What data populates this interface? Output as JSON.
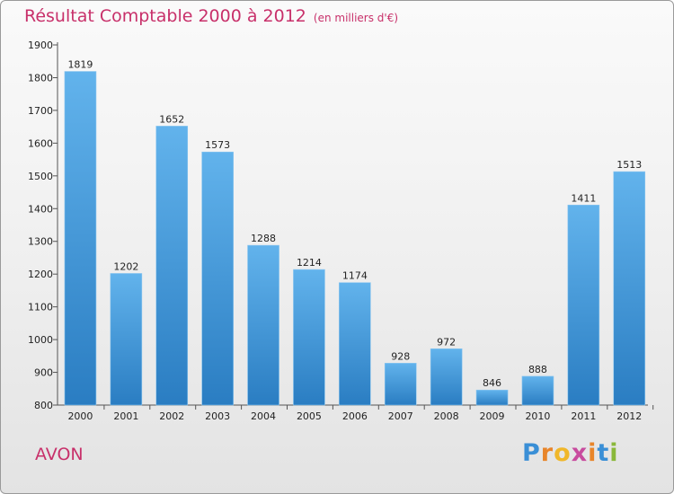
{
  "chart_data": {
    "type": "bar",
    "title": "Résultat Comptable 2000 à 2012",
    "subtitle": "(en milliers d'€)",
    "categories": [
      "2000",
      "2001",
      "2002",
      "2003",
      "2004",
      "2005",
      "2006",
      "2007",
      "2008",
      "2009",
      "2010",
      "2011",
      "2012"
    ],
    "values": [
      1819,
      1202,
      1652,
      1573,
      1288,
      1214,
      1174,
      928,
      972,
      846,
      888,
      1411,
      1513
    ],
    "ylim": [
      800,
      1900
    ],
    "yticks": [
      800,
      900,
      1000,
      1100,
      1200,
      1300,
      1400,
      1500,
      1600,
      1700,
      1800,
      1900
    ],
    "xlabel": "",
    "ylabel": "",
    "grid": false
  },
  "footer": {
    "commune": "AVON",
    "brand": "Proxiti"
  },
  "colors": {
    "title": "#c8306a",
    "bar_top": "#62b3ec",
    "bar_bottom": "#2a7dc2",
    "axis": "#555555",
    "brand_letters": [
      "#3a8fd6",
      "#e8852a",
      "#f0b72a",
      "#c84b9e",
      "#e8852a",
      "#3a8fd6",
      "#8ab83a"
    ]
  }
}
